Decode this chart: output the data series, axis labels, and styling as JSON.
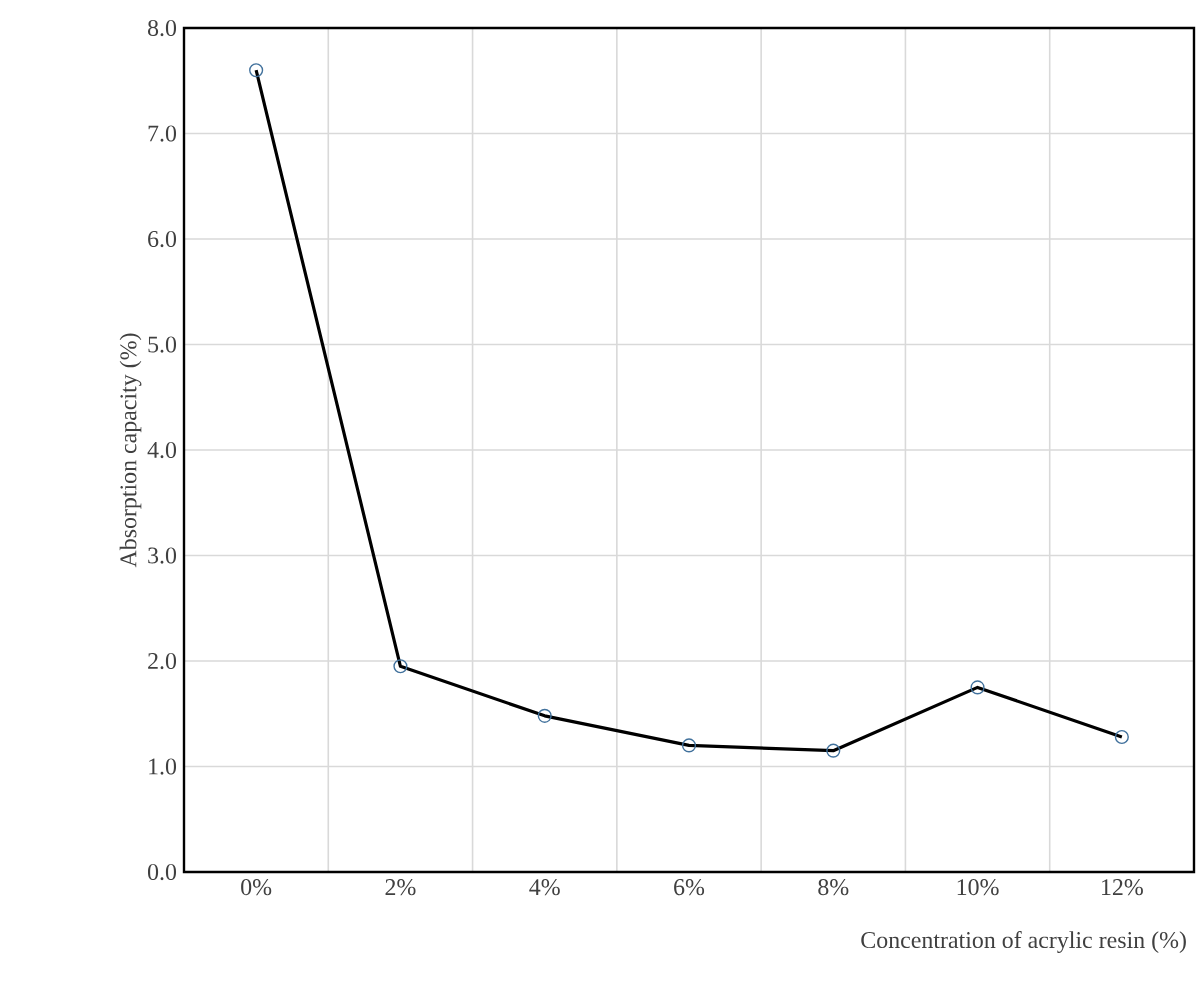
{
  "chart_data": {
    "type": "line",
    "xlabel": "Concentration of acrylic resin (%)",
    "ylabel": "Absorption capacity (%)",
    "categories": [
      "0%",
      "2%",
      "4%",
      "6%",
      "8%",
      "10%",
      "12%"
    ],
    "series": [
      {
        "color": "#000000",
        "values": [
          7.6,
          1.95,
          1.48,
          1.2,
          1.15,
          1.75,
          1.28
        ]
      }
    ],
    "ylim": [
      0,
      8
    ],
    "yticks": [
      {
        "value": 0,
        "label": "0.0"
      },
      {
        "value": 1,
        "label": "1.0"
      },
      {
        "value": 2,
        "label": "2.0"
      },
      {
        "value": 3,
        "label": "3.0"
      },
      {
        "value": 4,
        "label": "4.0"
      },
      {
        "value": 5,
        "label": "5.0"
      },
      {
        "value": 6,
        "label": "6.0"
      },
      {
        "value": 7,
        "label": "7.0"
      },
      {
        "value": 8,
        "label": "8.0"
      }
    ],
    "grid": true,
    "marker": "circle",
    "line_style": "solid"
  }
}
